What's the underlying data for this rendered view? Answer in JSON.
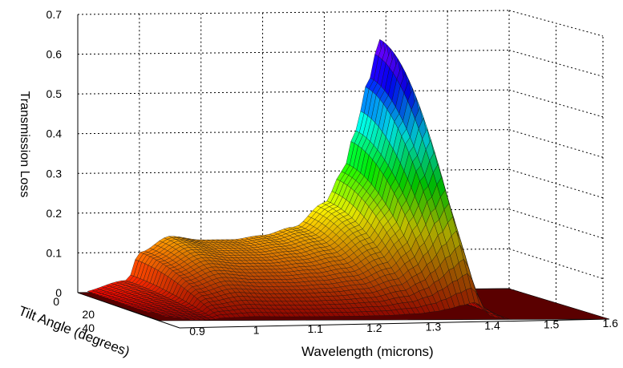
{
  "chart_data": {
    "type": "surface3d",
    "zlabel": "Transmission Loss",
    "xlabel": "Wavelength (microns)",
    "ylabel": "Tilt Angle (degrees)",
    "zlim": [
      0,
      0.7
    ],
    "xlim": [
      0.9,
      1.6
    ],
    "ylim": [
      0,
      45
    ],
    "z_ticks": [
      "0",
      "0.1",
      "0.2",
      "0.3",
      "0.4",
      "0.5",
      "0.6",
      "0.7"
    ],
    "x_ticks": [
      "0.9",
      "1",
      "1.1",
      "1.2",
      "1.3",
      "1.4",
      "1.5",
      "1.6"
    ],
    "y_ticks": [
      "0",
      "20",
      "40"
    ],
    "grid": true,
    "colormap": [
      "#ff0000",
      "#ff7f00",
      "#ffff00",
      "#00ff00",
      "#00ffff",
      "#0000ff",
      "#9a00ff"
    ],
    "ridge_profile": {
      "wavelength": [
        0.9,
        0.98,
        1.0,
        1.05,
        1.1,
        1.15,
        1.2,
        1.25,
        1.3,
        1.33,
        1.35,
        1.37,
        1.39,
        1.42,
        1.45,
        1.6
      ],
      "max_loss": [
        0.0,
        0.03,
        0.1,
        0.14,
        0.13,
        0.13,
        0.14,
        0.16,
        0.22,
        0.3,
        0.4,
        0.52,
        0.63,
        0.08,
        0.0,
        0.0
      ]
    }
  }
}
